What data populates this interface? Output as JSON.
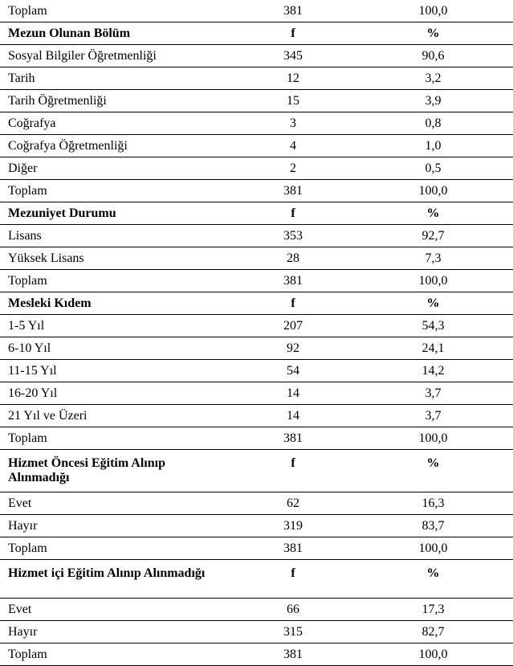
{
  "sections": [
    {
      "header": null,
      "rows": [
        {
          "label": "Toplam",
          "f": "381",
          "pct": "100,0"
        }
      ]
    },
    {
      "header": {
        "label": "Mezun Olunan Bölüm",
        "f": "f",
        "pct": "%"
      },
      "rows": [
        {
          "label": "Sosyal Bilgiler Öğretmenliği",
          "f": "345",
          "pct": "90,6"
        },
        {
          "label": "Tarih",
          "f": "12",
          "pct": "3,2"
        },
        {
          "label": "Tarih Öğretmenliği",
          "f": "15",
          "pct": "3,9"
        },
        {
          "label": "Coğrafya",
          "f": "3",
          "pct": "0,8"
        },
        {
          "label": "Coğrafya Öğretmenliği",
          "f": "4",
          "pct": "1,0"
        },
        {
          "label": "Diğer",
          "f": "2",
          "pct": "0,5"
        },
        {
          "label": "Toplam",
          "f": "381",
          "pct": "100,0"
        }
      ]
    },
    {
      "header": {
        "label": "Mezuniyet Durumu",
        "f": "f",
        "pct": "%"
      },
      "rows": [
        {
          "label": "Lisans",
          "f": "353",
          "pct": "92,7"
        },
        {
          "label": "Yüksek Lisans",
          "f": "28",
          "pct": "7,3"
        },
        {
          "label": "Toplam",
          "f": "381",
          "pct": "100,0"
        }
      ]
    },
    {
      "header": {
        "label": "Mesleki Kıdem",
        "f": "f",
        "pct": "%"
      },
      "rows": [
        {
          "label": "1-5 Yıl",
          "f": "207",
          "pct": "54,3"
        },
        {
          "label": "6-10 Yıl",
          "f": "92",
          "pct": "24,1"
        },
        {
          "label": "11-15 Yıl",
          "f": "54",
          "pct": "14,2"
        },
        {
          "label": "16-20 Yıl",
          "f": "14",
          "pct": "3,7"
        },
        {
          "label": "21 Yıl ve Üzeri",
          "f": "14",
          "pct": "3,7"
        },
        {
          "label": "Toplam",
          "f": "381",
          "pct": "100,0"
        }
      ]
    },
    {
      "header": {
        "label": "Hizmet Öncesi Eğitim Alınıp Alınmadığı",
        "f": "f",
        "pct": "%",
        "tall": true
      },
      "rows": [
        {
          "label": "Evet",
          "f": "62",
          "pct": "16,3"
        },
        {
          "label": "Hayır",
          "f": "319",
          "pct": "83,7"
        },
        {
          "label": "Toplam",
          "f": "381",
          "pct": "100,0"
        }
      ]
    },
    {
      "header": {
        "label": "Hizmet içi Eğitim Alınıp Alınmadığı",
        "f": "f",
        "pct": "%",
        "tall": true
      },
      "rows": [
        {
          "label": "Evet",
          "f": "66",
          "pct": "17,3"
        },
        {
          "label": "Hayır",
          "f": "315",
          "pct": "82,7"
        },
        {
          "label": "Toplam",
          "f": "381",
          "pct": "100,0"
        }
      ]
    }
  ]
}
